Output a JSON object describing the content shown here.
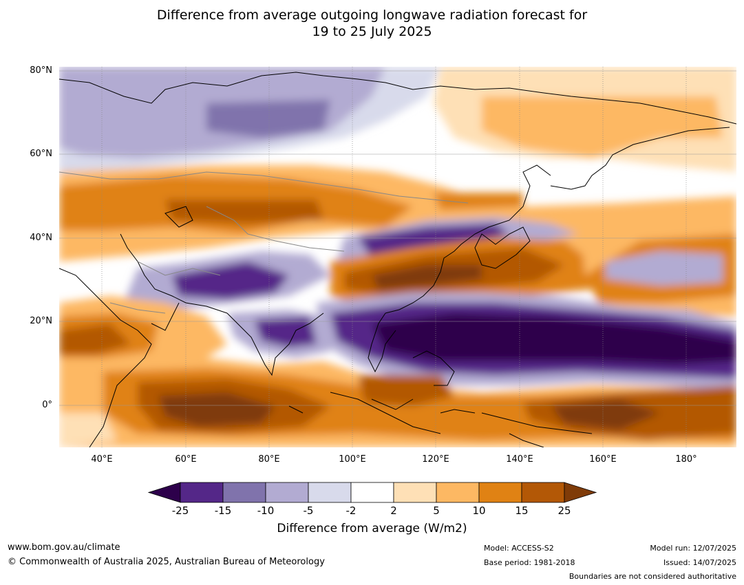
{
  "title": {
    "line1": "Difference from average outgoing longwave radiation forecast for",
    "line2": "19 to 25 July 2025"
  },
  "map": {
    "lat_labels": [
      "80°N",
      "60°N",
      "40°N",
      "20°N",
      "0°"
    ],
    "lon_labels": [
      "40°E",
      "60°E",
      "80°E",
      "100°E",
      "120°E",
      "140°E",
      "160°E",
      "180°"
    ],
    "extent": {
      "lon_min": 30,
      "lon_max": 192,
      "lat_min": -10,
      "lat_max": 81
    }
  },
  "colorbar": {
    "label": "Difference from average (W/m2)",
    "ticks": [
      "-25",
      "-15",
      "-10",
      "-5",
      "-2",
      "2",
      "5",
      "10",
      "15",
      "25"
    ],
    "colors": [
      "#2d004b",
      "#542788",
      "#8073ac",
      "#b2abd2",
      "#d8daeb",
      "#ffffff",
      "#fee0b6",
      "#fdb863",
      "#e08214",
      "#b35806",
      "#7f3b08"
    ]
  },
  "footer": {
    "website": "www.bom.gov.au/climate",
    "copyright": "© Commonwealth of Australia 2025, Australian Bureau of Meteorology",
    "model": "Model: ACCESS-S2",
    "base_period": "Base period: 1981-2018",
    "model_run": "Model run: 12/07/2025",
    "issued": "Issued: 14/07/2025",
    "disclaimer": "Boundaries are not considered authoritative"
  }
}
